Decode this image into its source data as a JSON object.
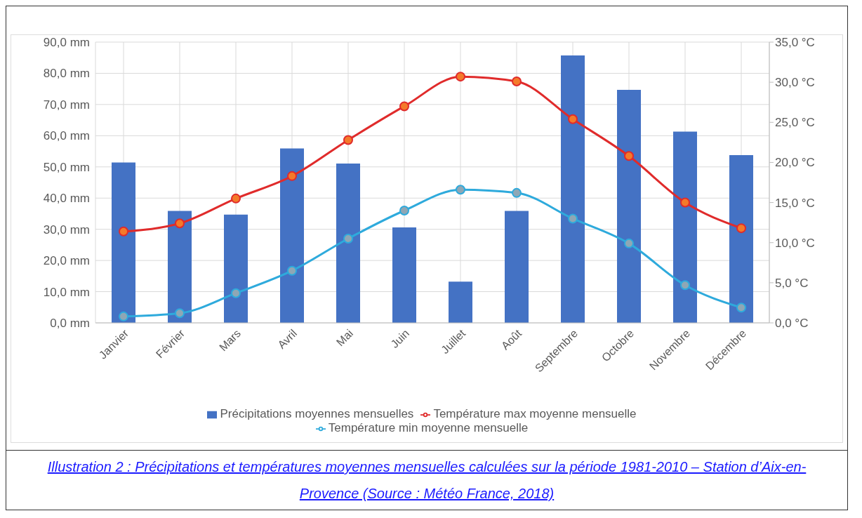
{
  "chart_data": {
    "type": "bar",
    "categories": [
      "Janvier",
      "Février",
      "Mars",
      "Avril",
      "Mai",
      "Juin",
      "Juillet",
      "Août",
      "Septembre",
      "Octobre",
      "Novembre",
      "Décembre"
    ],
    "series": [
      {
        "name": "Précipitations moyennes mensuelles",
        "color": "#4472c4",
        "values": [
          51.4,
          35.9,
          34.7,
          55.9,
          51.1,
          30.6,
          13.2,
          35.9,
          85.7,
          74.7,
          61.3,
          53.8
        ]
      },
      {
        "name": "Température max moyenne mensuelle",
        "type": "line",
        "axis": "y2",
        "color": "#e02b2b",
        "values": [
          11.4,
          12.4,
          15.5,
          18.3,
          22.8,
          27.0,
          30.7,
          30.1,
          25.4,
          20.8,
          15.0,
          11.8
        ]
      },
      {
        "name": "Température min moyenne mensuelle",
        "type": "line",
        "axis": "y2",
        "color": "#2eaadc",
        "values": [
          0.8,
          1.2,
          3.7,
          6.5,
          10.5,
          14.0,
          16.6,
          16.2,
          13.0,
          9.9,
          4.7,
          1.9
        ]
      }
    ],
    "ylim": [
      0,
      90
    ],
    "yticks": [
      {
        "value": 0,
        "label": "0,0 mm"
      },
      {
        "value": 10,
        "label": "10,0 mm"
      },
      {
        "value": 20,
        "label": "20,0 mm"
      },
      {
        "value": 30,
        "label": "30,0 mm"
      },
      {
        "value": 40,
        "label": "40,0 mm"
      },
      {
        "value": 50,
        "label": "50,0 mm"
      },
      {
        "value": 60,
        "label": "60,0 mm"
      },
      {
        "value": 70,
        "label": "70,0 mm"
      },
      {
        "value": 80,
        "label": "80,0 mm"
      },
      {
        "value": 90,
        "label": "90,0 mm"
      }
    ],
    "y2lim": [
      0,
      35
    ],
    "y2ticks": [
      {
        "value": 0,
        "label": "0,0 °C"
      },
      {
        "value": 5,
        "label": "5,0 °C"
      },
      {
        "value": 10,
        "label": "10,0 °C"
      },
      {
        "value": 15,
        "label": "15,0 °C"
      },
      {
        "value": 20,
        "label": "20,0 °C"
      },
      {
        "value": 25,
        "label": "25,0 °C"
      },
      {
        "value": 30,
        "label": "30,0 °C"
      },
      {
        "value": 35,
        "label": "35,0 °C"
      }
    ],
    "grid": true,
    "legend": "bottom",
    "marker": "circle",
    "line_style": "solid",
    "annotations": [
      "Illustration 2 : Précipitations et températures moyennes mensuelles calculées sur la période 1981-2010 – Station d’Aix-en-Provence (Source : Météo France, 2018)"
    ]
  }
}
